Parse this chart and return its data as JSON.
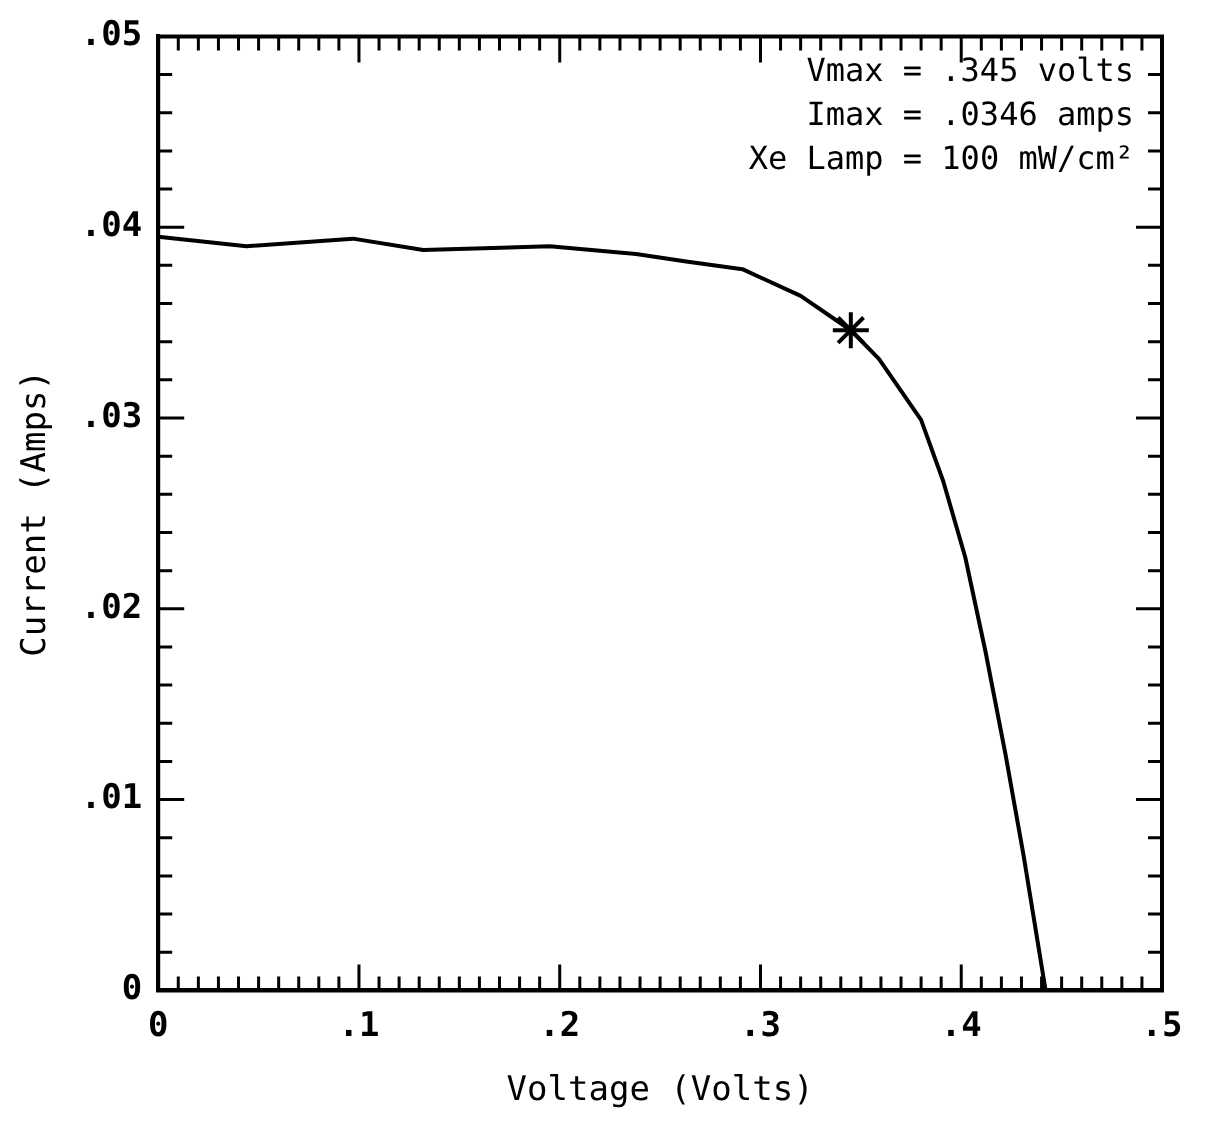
{
  "chart_data": {
    "type": "line",
    "xlabel": "Voltage (Volts)",
    "ylabel": "Current (Amps)",
    "annotations": [
      "Vmax = .345 volts",
      "Imax = .0346 amps",
      "Xe Lamp = 100 mW/cm²"
    ],
    "xlim": [
      0,
      0.5
    ],
    "ylim": [
      0,
      0.05
    ],
    "xticks": [
      {
        "value": 0,
        "label": "0"
      },
      {
        "value": 0.01,
        "label": null
      },
      {
        "value": 0.02,
        "label": null
      },
      {
        "value": 0.03,
        "label": null
      },
      {
        "value": 0.04,
        "label": null
      },
      {
        "value": 0.05,
        "label": null
      },
      {
        "value": 0.06,
        "label": null
      },
      {
        "value": 0.07,
        "label": null
      },
      {
        "value": 0.08,
        "label": null
      },
      {
        "value": 0.09,
        "label": null
      },
      {
        "value": 0.1,
        "label": ".1"
      },
      {
        "value": 0.11,
        "label": null
      },
      {
        "value": 0.12,
        "label": null
      },
      {
        "value": 0.13,
        "label": null
      },
      {
        "value": 0.14,
        "label": null
      },
      {
        "value": 0.15,
        "label": null
      },
      {
        "value": 0.16,
        "label": null
      },
      {
        "value": 0.17,
        "label": null
      },
      {
        "value": 0.18,
        "label": null
      },
      {
        "value": 0.19,
        "label": null
      },
      {
        "value": 0.2,
        "label": ".2"
      },
      {
        "value": 0.21,
        "label": null
      },
      {
        "value": 0.22,
        "label": null
      },
      {
        "value": 0.23,
        "label": null
      },
      {
        "value": 0.24,
        "label": null
      },
      {
        "value": 0.25,
        "label": null
      },
      {
        "value": 0.26,
        "label": null
      },
      {
        "value": 0.27,
        "label": null
      },
      {
        "value": 0.28,
        "label": null
      },
      {
        "value": 0.29,
        "label": null
      },
      {
        "value": 0.3,
        "label": ".3"
      },
      {
        "value": 0.31,
        "label": null
      },
      {
        "value": 0.32,
        "label": null
      },
      {
        "value": 0.33,
        "label": null
      },
      {
        "value": 0.34,
        "label": null
      },
      {
        "value": 0.35,
        "label": null
      },
      {
        "value": 0.36,
        "label": null
      },
      {
        "value": 0.37,
        "label": null
      },
      {
        "value": 0.38,
        "label": null
      },
      {
        "value": 0.39,
        "label": null
      },
      {
        "value": 0.4,
        "label": ".4"
      },
      {
        "value": 0.41,
        "label": null
      },
      {
        "value": 0.42,
        "label": null
      },
      {
        "value": 0.43,
        "label": null
      },
      {
        "value": 0.44,
        "label": null
      },
      {
        "value": 0.45,
        "label": null
      },
      {
        "value": 0.46,
        "label": null
      },
      {
        "value": 0.47,
        "label": null
      },
      {
        "value": 0.48,
        "label": null
      },
      {
        "value": 0.49,
        "label": null
      },
      {
        "value": 0.5,
        "label": ".5"
      }
    ],
    "yticks": [
      {
        "value": 0,
        "label": "0"
      },
      {
        "value": 0.002,
        "label": null
      },
      {
        "value": 0.004,
        "label": null
      },
      {
        "value": 0.006,
        "label": null
      },
      {
        "value": 0.008,
        "label": null
      },
      {
        "value": 0.01,
        "label": ".01"
      },
      {
        "value": 0.012,
        "label": null
      },
      {
        "value": 0.014,
        "label": null
      },
      {
        "value": 0.016,
        "label": null
      },
      {
        "value": 0.018,
        "label": null
      },
      {
        "value": 0.02,
        "label": ".02"
      },
      {
        "value": 0.022,
        "label": null
      },
      {
        "value": 0.024,
        "label": null
      },
      {
        "value": 0.026,
        "label": null
      },
      {
        "value": 0.028,
        "label": null
      },
      {
        "value": 0.03,
        "label": ".03"
      },
      {
        "value": 0.032,
        "label": null
      },
      {
        "value": 0.034,
        "label": null
      },
      {
        "value": 0.036,
        "label": null
      },
      {
        "value": 0.038,
        "label": null
      },
      {
        "value": 0.04,
        "label": ".04"
      },
      {
        "value": 0.042,
        "label": null
      },
      {
        "value": 0.044,
        "label": null
      },
      {
        "value": 0.046,
        "label": null
      },
      {
        "value": 0.048,
        "label": null
      },
      {
        "value": 0.05,
        "label": ".05"
      }
    ],
    "grid": false,
    "legend": false,
    "series": [
      {
        "color": "#000000",
        "marker": "none",
        "line_style": "solid",
        "x": [
          0,
          0.044,
          0.097,
          0.132,
          0.195,
          0.238,
          0.263,
          0.291,
          0.32,
          0.345,
          0.359,
          0.38,
          0.391,
          0.402,
          0.412,
          0.422,
          0.431,
          0.44,
          0.442
        ],
        "values": [
          0.0395,
          0.039,
          0.0394,
          0.0388,
          0.039,
          0.0386,
          0.0382,
          0.0378,
          0.0364,
          0.0346,
          0.0331,
          0.0299,
          0.0267,
          0.0227,
          0.0178,
          0.0124,
          0.0071,
          0.0013,
          0
        ]
      },
      {
        "type": "scatter",
        "color": "#000000",
        "marker": "cross",
        "x": [
          0.345
        ],
        "values": [
          0.0346
        ]
      }
    ]
  }
}
